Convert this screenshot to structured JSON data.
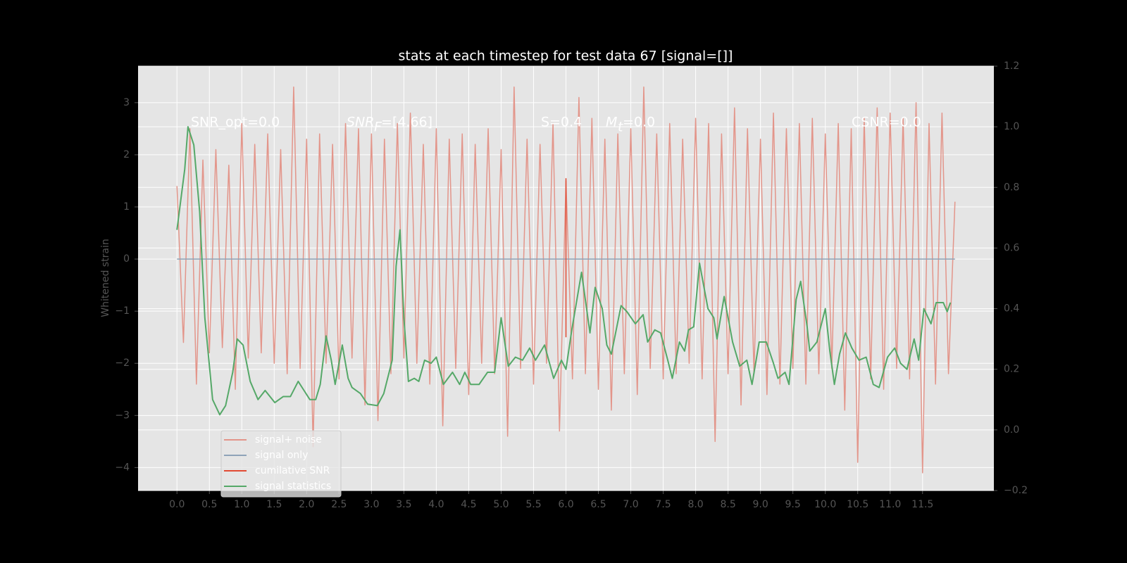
{
  "chart_data": {
    "type": "line",
    "title": "stats at each timestep for test data 67 [signal=[]]",
    "y_label": "Whitened strain",
    "annotations": [
      "SNR_opt=0.0",
      "SNR",
      "F",
      "=[4.66]",
      "S=0.4",
      "M",
      "t",
      "=0.0",
      "CSNR=0.0"
    ],
    "xlim": [
      -0.6,
      12.6
    ],
    "ylim": [
      -4.44,
      3.7
    ],
    "y2lim": [
      -0.2,
      1.2
    ],
    "xticks": [
      {
        "value": 0,
        "label": "0.0"
      },
      0.5,
      {
        "value": 1,
        "label": "1.0"
      },
      1.5,
      {
        "value": 2,
        "label": "2.0"
      },
      2.5,
      {
        "value": 3,
        "label": "3.0"
      },
      3.5,
      {
        "value": 4,
        "label": "4.0"
      },
      4.5,
      {
        "value": 5,
        "label": "5.0"
      },
      5.5,
      {
        "value": 6,
        "label": "6.0"
      },
      6.5,
      {
        "value": 7,
        "label": "7.0"
      },
      7.5,
      {
        "value": 8,
        "label": "8.0"
      },
      8.5,
      {
        "value": 9,
        "label": "9.0"
      },
      9.5,
      {
        "value": 10,
        "label": "10.0"
      },
      10.5,
      {
        "value": 11,
        "label": "11.0"
      },
      11.5
    ],
    "yticks": [
      {
        "value": -4,
        "label": "−4"
      },
      {
        "value": -3,
        "label": "−3"
      },
      {
        "value": -2,
        "label": "−2"
      },
      {
        "value": -1,
        "label": "−1"
      },
      0,
      1,
      2,
      3
    ],
    "y2ticks": [
      {
        "value": -0.2,
        "label": "−0.2"
      },
      {
        "value": 0,
        "label": "0.0"
      },
      0.2,
      0.4,
      0.6,
      0.8,
      {
        "value": 1,
        "label": "1.0"
      },
      1.2
    ],
    "grid": true,
    "legend": "lower left",
    "series": [
      {
        "name": "signal+ noise",
        "color": "#e3958a",
        "x": [
          0,
          0.1,
          0.2,
          0.3,
          0.4,
          0.5,
          0.6,
          0.7,
          0.8,
          0.9,
          1,
          1.1,
          1.2,
          1.3,
          1.4,
          1.5,
          1.6,
          1.7,
          1.8,
          1.9,
          2,
          2.1,
          2.2,
          2.3,
          2.4,
          2.5,
          2.6,
          2.7,
          2.8,
          2.9,
          3,
          3.1,
          3.2,
          3.3,
          3.4,
          3.5,
          3.6,
          3.7,
          3.8,
          3.9,
          4,
          4.1,
          4.2,
          4.3,
          4.4,
          4.5,
          4.6,
          4.7,
          4.8,
          4.9,
          5,
          5.1,
          5.2,
          5.3,
          5.4,
          5.5,
          5.6,
          5.7,
          5.8,
          5.9,
          6,
          6.1,
          6.2,
          6.3,
          6.4,
          6.5,
          6.6,
          6.7,
          6.8,
          6.9,
          7,
          7.1,
          7.2,
          7.3,
          7.4,
          7.5,
          7.6,
          7.7,
          7.8,
          7.9,
          8,
          8.1,
          8.2,
          8.3,
          8.4,
          8.5,
          8.6,
          8.7,
          8.8,
          8.9,
          9,
          9.1,
          9.2,
          9.3,
          9.4,
          9.5,
          9.6,
          9.7,
          9.8,
          9.9,
          10,
          10.1,
          10.2,
          10.3,
          10.4,
          10.5,
          10.6,
          10.7,
          10.8,
          10.9,
          11,
          11.1,
          11.2,
          11.3,
          11.4,
          11.5,
          11.6,
          11.7,
          11.8,
          11.9,
          12
        ],
        "values": [
          1.4,
          -1.6,
          2.5,
          -2.4,
          1.9,
          -1.8,
          2.1,
          -1.7,
          1.8,
          -2.5,
          2.6,
          -1.9,
          2.2,
          -1.8,
          2.4,
          -2.0,
          2.1,
          -2.2,
          3.3,
          -2.1,
          2.3,
          -3.6,
          2.4,
          -2.0,
          2.2,
          -2.3,
          2.6,
          -1.9,
          2.5,
          -2.8,
          2.4,
          -3.1,
          2.3,
          -2.2,
          2.6,
          -1.9,
          2.8,
          -2.0,
          2.2,
          -2.4,
          2.5,
          -3.2,
          2.3,
          -2.1,
          2.4,
          -2.6,
          2.2,
          -2.0,
          2.5,
          -2.2,
          2.1,
          -3.4,
          3.3,
          -2.1,
          2.3,
          -2.4,
          2.2,
          -2.0,
          2.6,
          -3.3,
          1.5,
          -2.3,
          3.1,
          -2.2,
          2.7,
          -2.5,
          2.3,
          -2.9,
          2.4,
          -2.2,
          2.5,
          -2.6,
          3.3,
          -2.1,
          2.4,
          -2.3,
          2.6,
          -2.2,
          2.3,
          -2.0,
          2.7,
          -2.3,
          2.6,
          -3.5,
          2.4,
          -2.2,
          2.9,
          -2.8,
          2.5,
          -2.2,
          2.3,
          -2.6,
          2.8,
          -2.4,
          2.5,
          -2.1,
          2.6,
          -2.4,
          2.7,
          -2.2,
          2.4,
          -2.1,
          2.6,
          -2.9,
          2.5,
          -3.9,
          2.7,
          -2.3,
          2.9,
          -2.5,
          2.8,
          -2.1,
          2.7,
          -2.3,
          3.0,
          -4.1,
          2.6,
          -2.4,
          2.8,
          -2.2,
          1.1
        ]
      },
      {
        "name": "signal only",
        "color": "#8ea3b8",
        "x": [
          0,
          12
        ],
        "values": [
          0,
          0
        ]
      },
      {
        "name": "cumilative SNR",
        "color": "#e24a33",
        "x": [
          6,
          6
        ],
        "values": [
          1.55,
          -1.5
        ]
      },
      {
        "name": "signal statistics",
        "color": "#55a868",
        "axis": "y2",
        "x": [
          0,
          0.12,
          0.17,
          0.26,
          0.35,
          0.43,
          0.55,
          0.66,
          0.75,
          0.86,
          0.93,
          1.02,
          1.13,
          1.25,
          1.36,
          1.51,
          1.64,
          1.75,
          1.87,
          1.96,
          2.05,
          2.14,
          2.21,
          2.3,
          2.38,
          2.44,
          2.55,
          2.64,
          2.7,
          2.83,
          2.94,
          3.09,
          3.19,
          3.32,
          3.38,
          3.44,
          3.5,
          3.57,
          3.66,
          3.73,
          3.82,
          3.92,
          4,
          4.11,
          4.25,
          4.36,
          4.44,
          4.53,
          4.66,
          4.79,
          4.9,
          5,
          5.11,
          5.22,
          5.33,
          5.44,
          5.53,
          5.67,
          5.81,
          5.93,
          6,
          6.09,
          6.24,
          6.37,
          6.45,
          6.56,
          6.63,
          6.7,
          6.85,
          6.94,
          7.07,
          7.19,
          7.26,
          7.37,
          7.46,
          7.57,
          7.64,
          7.75,
          7.83,
          7.89,
          7.97,
          8.03,
          8.06,
          8.19,
          8.28,
          8.33,
          8.44,
          8.57,
          8.68,
          8.79,
          8.87,
          8.98,
          9.09,
          9.2,
          9.27,
          9.38,
          9.44,
          9.55,
          9.62,
          9.72,
          9.76,
          9.87,
          10,
          10.07,
          10.14,
          10.22,
          10.31,
          10.41,
          10.52,
          10.63,
          10.74,
          10.83,
          10.96,
          11.07,
          11.16,
          11.26,
          11.37,
          11.44,
          11.52,
          11.63,
          11.71,
          11.82,
          11.88,
          11.93
        ],
        "values": [
          0.66,
          0.86,
          1.0,
          0.94,
          0.72,
          0.37,
          0.1,
          0.05,
          0.08,
          0.19,
          0.3,
          0.28,
          0.16,
          0.1,
          0.13,
          0.09,
          0.11,
          0.11,
          0.16,
          0.13,
          0.1,
          0.1,
          0.15,
          0.31,
          0.23,
          0.15,
          0.28,
          0.17,
          0.14,
          0.12,
          0.085,
          0.08,
          0.12,
          0.23,
          0.54,
          0.66,
          0.37,
          0.16,
          0.17,
          0.16,
          0.23,
          0.22,
          0.24,
          0.15,
          0.19,
          0.15,
          0.19,
          0.15,
          0.15,
          0.19,
          0.19,
          0.37,
          0.21,
          0.24,
          0.23,
          0.27,
          0.23,
          0.28,
          0.17,
          0.23,
          0.2,
          0.33,
          0.52,
          0.32,
          0.47,
          0.4,
          0.28,
          0.25,
          0.41,
          0.39,
          0.35,
          0.38,
          0.29,
          0.33,
          0.32,
          0.23,
          0.17,
          0.29,
          0.26,
          0.33,
          0.34,
          0.48,
          0.55,
          0.4,
          0.37,
          0.3,
          0.44,
          0.29,
          0.21,
          0.23,
          0.15,
          0.29,
          0.29,
          0.22,
          0.17,
          0.19,
          0.15,
          0.43,
          0.49,
          0.34,
          0.26,
          0.29,
          0.4,
          0.26,
          0.15,
          0.25,
          0.32,
          0.27,
          0.23,
          0.24,
          0.15,
          0.14,
          0.24,
          0.27,
          0.22,
          0.2,
          0.3,
          0.23,
          0.4,
          0.35,
          0.42,
          0.42,
          0.39,
          0.42
        ]
      }
    ]
  }
}
